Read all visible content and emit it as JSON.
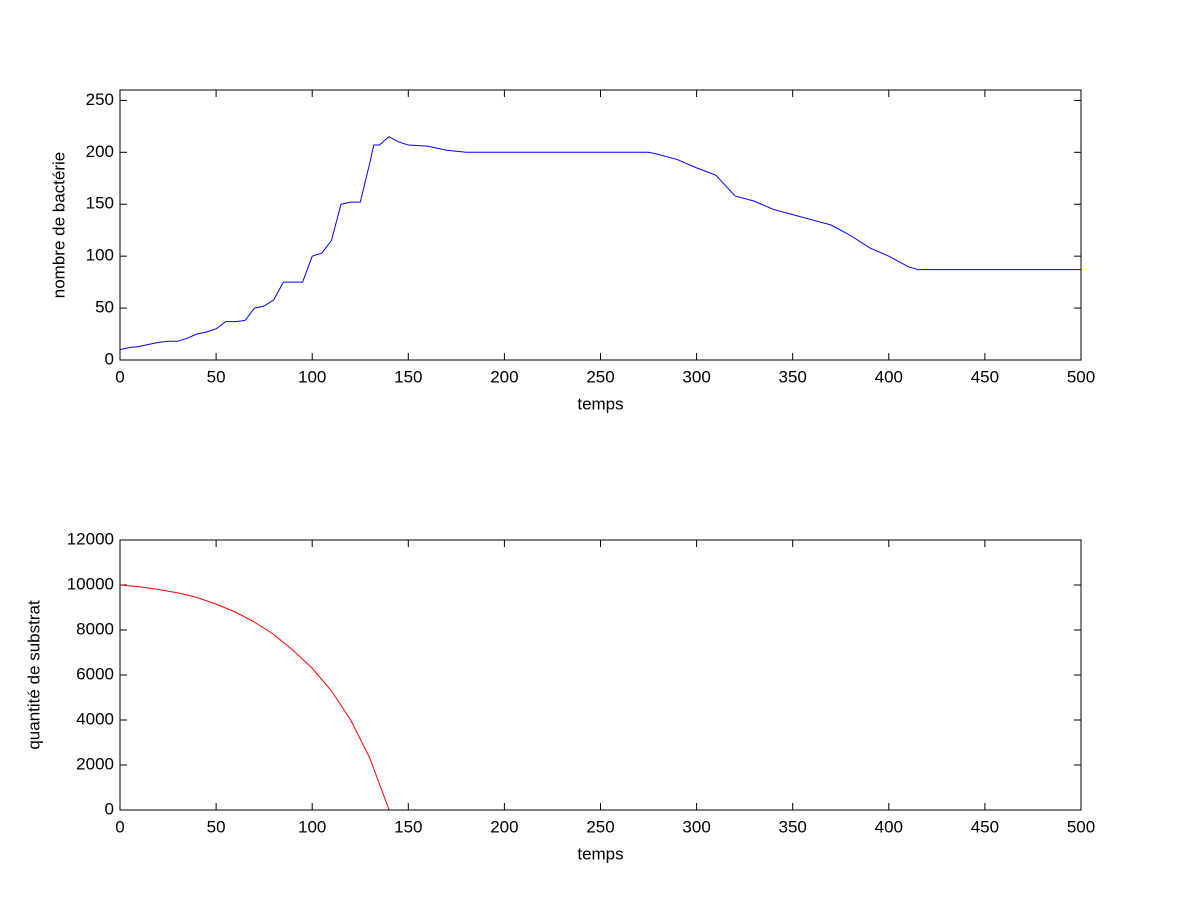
{
  "chart_data": [
    {
      "type": "line",
      "xlabel": "temps",
      "ylabel": "nombre de bactérie",
      "x": [
        0,
        5,
        10,
        15,
        20,
        25,
        30,
        35,
        40,
        45,
        50,
        55,
        60,
        65,
        70,
        75,
        80,
        85,
        90,
        95,
        100,
        105,
        110,
        115,
        120,
        125,
        130,
        132,
        135,
        138,
        140,
        145,
        150,
        160,
        170,
        180,
        200,
        250,
        275,
        280,
        290,
        300,
        310,
        320,
        330,
        340,
        350,
        360,
        370,
        380,
        390,
        400,
        410,
        415,
        450,
        500
      ],
      "series": [
        {
          "color": "#0000ff",
          "values": [
            10,
            12,
            13,
            15,
            17,
            18,
            18,
            21,
            25,
            27,
            30,
            37,
            37,
            38,
            50,
            52,
            58,
            75,
            75,
            75,
            100,
            103,
            115,
            150,
            152,
            152,
            190,
            207,
            207,
            212,
            215,
            210,
            207,
            206,
            202,
            200,
            200,
            200,
            200,
            198,
            193,
            185,
            178,
            158,
            153,
            145,
            140,
            135,
            130,
            120,
            108,
            100,
            90,
            87,
            87,
            87
          ]
        }
      ],
      "xlim": [
        0,
        500
      ],
      "xticks": [
        0,
        50,
        100,
        150,
        200,
        250,
        300,
        350,
        400,
        450,
        500
      ],
      "ylim": [
        0,
        260
      ],
      "yticks": [
        0,
        50,
        100,
        150,
        200,
        250
      ],
      "grid": false
    },
    {
      "type": "line",
      "xlabel": "temps",
      "ylabel": "quantité de substrat",
      "x": [
        0,
        10,
        20,
        30,
        40,
        50,
        60,
        70,
        80,
        90,
        100,
        110,
        120,
        130,
        140
      ],
      "series": [
        {
          "color": "#ff0000",
          "values": [
            10000,
            9920,
            9800,
            9650,
            9450,
            9150,
            8800,
            8350,
            7800,
            7100,
            6300,
            5300,
            4000,
            2300,
            0
          ]
        }
      ],
      "xlim": [
        0,
        500
      ],
      "xticks": [
        0,
        50,
        100,
        150,
        200,
        250,
        300,
        350,
        400,
        450,
        500
      ],
      "ylim": [
        0,
        12000
      ],
      "yticks": [
        0,
        2000,
        4000,
        6000,
        8000,
        10000,
        12000
      ],
      "grid": false
    }
  ]
}
